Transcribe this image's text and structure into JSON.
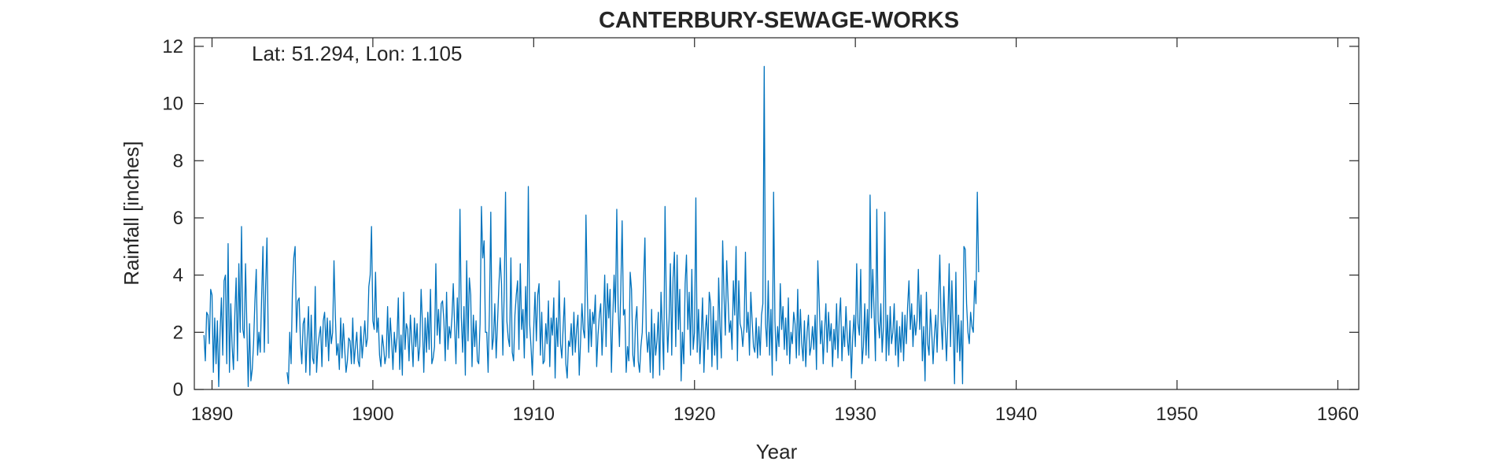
{
  "chart_data": {
    "type": "line",
    "title": "CANTERBURY-SEWAGE-WORKS",
    "annotation": "Lat: 51.294, Lon: 1.105",
    "xlabel": "Year",
    "ylabel": "Rainfall [inches]",
    "xlim": [
      1888.9,
      1961.3
    ],
    "ylim": [
      0,
      12.3
    ],
    "xticks": [
      1890,
      1900,
      1910,
      1920,
      1930,
      1940,
      1950,
      1960
    ],
    "yticks": [
      0,
      2,
      4,
      6,
      8,
      10,
      12
    ],
    "grid": false,
    "series_color": "#0072BD",
    "series": [
      {
        "x_start": 1889.5,
        "x_step": 0.083333,
        "values": [
          1.9,
          1.0,
          2.7,
          2.6,
          1.6,
          3.5,
          3.3,
          0.6,
          2.5,
          0.9,
          2.4,
          0.1,
          2.0,
          3.2,
          1.2,
          3.8,
          4.0,
          0.9,
          5.1,
          0.6,
          3.0,
          1.5,
          0.7,
          2.6,
          3.9,
          1.0,
          4.4,
          2.0,
          5.7,
          2.1,
          1.8,
          4.4,
          2.2,
          0.1,
          2.3,
          0.3,
          0.7,
          1.6,
          3.1,
          4.2,
          1.2,
          2.0,
          1.3,
          3.2,
          5.0,
          1.3,
          3.6,
          5.3,
          1.6,
          null,
          null,
          null,
          null,
          null,
          null,
          null,
          null,
          null,
          null,
          null,
          null,
          null,
          0.6,
          0.2,
          2.0,
          0.9,
          3.5,
          4.6,
          5.0,
          2.0,
          3.1,
          3.2,
          1.6,
          0.9,
          2.3,
          2.5,
          0.6,
          1.8,
          2.9,
          0.5,
          2.6,
          1.1,
          0.9,
          3.6,
          0.6,
          1.5,
          1.9,
          2.2,
          0.8,
          2.4,
          2.7,
          1.5,
          2.5,
          1.0,
          2.4,
          1.6,
          2.0,
          4.5,
          2.6,
          1.2,
          1.6,
          0.7,
          2.5,
          1.1,
          2.3,
          1.4,
          0.6,
          1.0,
          1.8,
          1.7,
          0.9,
          2.5,
          0.9,
          1.5,
          2.0,
          1.0,
          0.8,
          2.2,
          1.1,
          1.7,
          2.4,
          1.5,
          1.8,
          3.6,
          4.0,
          5.7,
          2.4,
          2.1,
          4.1,
          2.0,
          2.5,
          1.2,
          0.8,
          1.9,
          1.5,
          0.9,
          1.2,
          2.9,
          1.1,
          2.5,
          1.7,
          0.7,
          2.0,
          1.3,
          1.8,
          3.2,
          0.7,
          1.9,
          0.5,
          3.4,
          1.4,
          2.3,
          2.1,
          1.0,
          2.6,
          1.7,
          0.8,
          2.5,
          1.5,
          2.3,
          1.0,
          1.5,
          3.5,
          2.3,
          0.6,
          2.5,
          1.3,
          2.7,
          1.4,
          3.5,
          0.9,
          1.1,
          1.5,
          4.4,
          1.9,
          2.8,
          1.6,
          3.0,
          3.1,
          2.4,
          1.0,
          3.4,
          1.4,
          2.2,
          1.8,
          2.5,
          3.7,
          2.2,
          0.9,
          3.2,
          1.8,
          6.3,
          2.5,
          1.3,
          2.9,
          0.5,
          4.5,
          1.7,
          3.9,
          3.3,
          0.8,
          2.6,
          1.5,
          2.4,
          1.0,
          0.9,
          2.3,
          6.4,
          4.6,
          5.2,
          2.0,
          2.0,
          0.6,
          2.8,
          6.2,
          1.4,
          1.8,
          3.0,
          1.1,
          2.3,
          3.6,
          4.6,
          3.7,
          1.2,
          3.4,
          6.9,
          2.4,
          1.8,
          1.5,
          4.6,
          1.3,
          1.0,
          2.6,
          3.3,
          3.8,
          1.4,
          4.4,
          2.1,
          2.8,
          1.1,
          3.6,
          1.8,
          7.1,
          2.3,
          1.5,
          0.5,
          2.1,
          3.4,
          1.7,
          3.3,
          3.7,
          1.2,
          2.7,
          0.9,
          1.0,
          2.3,
          1.6,
          3.1,
          0.8,
          2.5,
          1.9,
          3.2,
          0.4,
          2.5,
          1.5,
          3.8,
          1.6,
          1.1,
          2.2,
          3.2,
          0.9,
          0.4,
          1.7,
          1.5,
          2.3,
          1.2,
          2.7,
          1.3,
          2.1,
          2.6,
          0.5,
          1.7,
          3.0,
          2.1,
          1.8,
          6.1,
          3.4,
          1.3,
          2.8,
          1.5,
          2.7,
          2.3,
          3.3,
          0.8,
          1.9,
          2.6,
          3.0,
          1.2,
          2.4,
          4.0,
          1.5,
          3.7,
          2.5,
          3.5,
          0.6,
          2.5,
          4.0,
          2.7,
          6.3,
          2.9,
          1.5,
          3.5,
          5.9,
          2.6,
          2.8,
          0.6,
          1.5,
          1.0,
          4.1,
          3.5,
          1.2,
          0.8,
          2.4,
          2.9,
          1.0,
          0.6,
          1.5,
          2.0,
          3.8,
          5.3,
          2.0,
          1.3,
          2.0,
          0.6,
          2.8,
          0.4,
          2.3,
          1.2,
          1.7,
          2.7,
          0.5,
          3.4,
          2.1,
          0.7,
          6.4,
          2.9,
          1.3,
          2.4,
          4.4,
          1.2,
          3.9,
          4.8,
          1.5,
          4.7,
          2.1,
          3.5,
          0.3,
          2.0,
          0.9,
          3.7,
          4.7,
          2.1,
          3.4,
          1.2,
          4.2,
          1.4,
          2.0,
          6.7,
          1.3,
          2.8,
          0.9,
          1.9,
          3.2,
          0.6,
          2.0,
          2.6,
          1.4,
          3.4,
          3.0,
          0.8,
          2.9,
          1.2,
          2.4,
          0.7,
          3.9,
          2.2,
          1.1,
          5.2,
          3.3,
          1.9,
          4.5,
          3.2,
          2.0,
          2.4,
          1.4,
          3.8,
          2.6,
          5.0,
          1.0,
          3.8,
          2.3,
          2.1,
          1.5,
          2.2,
          4.8,
          2.0,
          2.7,
          1.2,
          3.4,
          2.4,
          1.5,
          1.3,
          2.5,
          1.1,
          2.2,
          1.2,
          2.6,
          3.0,
          11.3,
          2.3,
          1.5,
          3.8,
          1.2,
          2.8,
          0.5,
          6.9,
          2.4,
          1.0,
          2.2,
          1.5,
          3.7,
          2.1,
          2.9,
          1.4,
          2.5,
          1.2,
          3.2,
          0.9,
          2.0,
          1.6,
          2.7,
          2.3,
          1.1,
          3.5,
          1.2,
          2.8,
          1.6,
          1.0,
          2.4,
          0.8,
          2.0,
          2.6,
          1.2,
          1.5,
          2.2,
          1.4,
          2.6,
          0.7,
          4.5,
          3.1,
          1.6,
          2.4,
          0.9,
          2.0,
          3.0,
          1.3,
          2.7,
          1.7,
          2.3,
          0.8,
          2.1,
          1.4,
          3.0,
          1.1,
          2.5,
          3.2,
          1.0,
          2.2,
          1.5,
          2.9,
          1.8,
          1.2,
          2.4,
          0.4,
          1.8,
          2.6,
          1.5,
          4.4,
          2.3,
          1.9,
          4.2,
          0.9,
          1.5,
          3.0,
          1.2,
          2.8,
          1.1,
          6.8,
          2.5,
          4.2,
          2.7,
          1.0,
          6.3,
          2.4,
          1.8,
          3.0,
          1.3,
          2.2,
          6.2,
          1.0,
          2.6,
          1.2,
          2.9,
          1.6,
          2.0,
          3.0,
          1.2,
          2.4,
          0.8,
          2.2,
          1.3,
          2.7,
          1.0,
          2.6,
          1.6,
          2.9,
          3.8,
          2.1,
          3.0,
          1.5,
          2.6,
          1.9,
          2.4,
          4.2,
          2.1,
          3.3,
          1.0,
          2.2,
          0.3,
          3.4,
          1.6,
          1.2,
          2.8,
          2.0,
          0.9,
          1.9,
          2.6,
          1.3,
          3.0,
          4.7,
          2.4,
          1.4,
          3.6,
          2.2,
          1.0,
          2.4,
          4.4,
          1.5,
          3.8,
          2.2,
          0.2,
          4.1,
          1.3,
          2.6,
          1.0,
          2.4,
          0.2,
          5.0,
          4.9,
          3.0,
          2.0,
          1.6,
          2.7,
          2.2,
          2.0,
          3.8,
          3.0,
          6.9,
          4.1
        ]
      }
    ]
  }
}
